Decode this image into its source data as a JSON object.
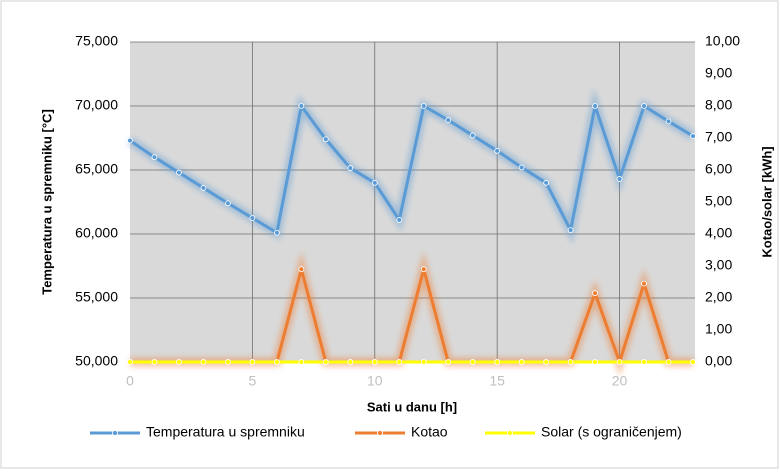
{
  "chart_data": {
    "type": "line",
    "xlabel": "Sati u danu [h]",
    "ylabel": "Temperatura u spremniku [°C]",
    "y2label": "Kotao/solar [kWh]",
    "x": [
      0,
      1,
      2,
      3,
      4,
      5,
      6,
      7,
      8,
      9,
      10,
      11,
      12,
      13,
      14,
      15,
      16,
      17,
      18,
      19,
      20,
      21,
      22,
      23
    ],
    "xlim": [
      0,
      23
    ],
    "xticks": [
      0,
      5,
      10,
      15,
      20
    ],
    "ylim": [
      50,
      75
    ],
    "yticks": [
      {
        "value": 50,
        "label": "50,000"
      },
      {
        "value": 55,
        "label": "55,000"
      },
      {
        "value": 60,
        "label": "60,000"
      },
      {
        "value": 65,
        "label": "65,000"
      },
      {
        "value": 70,
        "label": "70,000"
      },
      {
        "value": 75,
        "label": "75,000"
      }
    ],
    "y2lim": [
      0,
      10
    ],
    "y2ticks": [
      {
        "value": 0,
        "label": "0,00"
      },
      {
        "value": 1,
        "label": "1,00"
      },
      {
        "value": 2,
        "label": "2,00"
      },
      {
        "value": 3,
        "label": "3,00"
      },
      {
        "value": 4,
        "label": "4,00"
      },
      {
        "value": 5,
        "label": "5,00"
      },
      {
        "value": 6,
        "label": "6,00"
      },
      {
        "value": 7,
        "label": "7,00"
      },
      {
        "value": 8,
        "label": "8,00"
      },
      {
        "value": 9,
        "label": "9,00"
      },
      {
        "value": 10,
        "label": "10,00"
      }
    ],
    "grid": true,
    "legend": "bottom",
    "series": [
      {
        "name": "Temperatura u spremniku",
        "color": "#5b9bd5",
        "values": [
          67.3,
          66.0,
          64.8,
          63.6,
          62.4,
          61.25,
          60.1,
          70.0,
          67.4,
          65.15,
          64.0,
          61.1,
          70.0,
          68.9,
          67.7,
          66.5,
          65.2,
          64.0,
          60.3,
          70.0,
          64.3,
          70.0,
          68.8,
          67.65
        ]
      },
      {
        "name": "Kotao",
        "color": "#ed7d31",
        "axis": "y2",
        "values": [
          0,
          0,
          0,
          0,
          0,
          0,
          0,
          2.9,
          0,
          0,
          0,
          0,
          2.9,
          0,
          0,
          0,
          0,
          0,
          0,
          2.15,
          0,
          2.45,
          0,
          0
        ]
      },
      {
        "name": "Solar (s ograničenjem)",
        "color": "#ffff00",
        "axis": "y2",
        "values": [
          0,
          0,
          0,
          0,
          0,
          0,
          0,
          0,
          0,
          0,
          0,
          0,
          0,
          0,
          0,
          0,
          0,
          0,
          0,
          0,
          0,
          0,
          0,
          0
        ]
      }
    ]
  }
}
